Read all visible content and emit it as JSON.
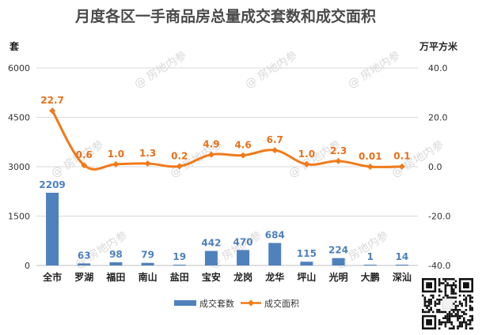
{
  "chart_data": {
    "type": "bar+line",
    "title": "月度各区一手商品房总量成交套数和成交面积",
    "y_left_unit": "套",
    "y_right_unit": "万平方米",
    "y_left_ticks": [
      "6000",
      "4500",
      "3000",
      "1500",
      "0"
    ],
    "y_right_ticks": [
      "40.0",
      "20.0",
      "0.0",
      "-20.0",
      "-40.0"
    ],
    "y_left_range": [
      0,
      6000
    ],
    "y_right_range": [
      -40,
      40
    ],
    "categories": [
      "全市",
      "罗湖",
      "福田",
      "南山",
      "盐田",
      "宝安",
      "龙岗",
      "龙华",
      "坪山",
      "光明",
      "大鹏",
      "深汕"
    ],
    "series": [
      {
        "name": "成交套数",
        "type": "bar",
        "axis": "left",
        "color": "#4f81bd",
        "values": [
          2209,
          63,
          98,
          79,
          19,
          442,
          470,
          684,
          115,
          224,
          1,
          14
        ],
        "labels": [
          "2209",
          "63",
          "98",
          "79",
          "19",
          "442",
          "470",
          "684",
          "115",
          "224",
          "1",
          "14"
        ]
      },
      {
        "name": "成交面积",
        "type": "line",
        "axis": "right",
        "color": "#f07a1a",
        "values": [
          22.7,
          0.6,
          1.0,
          1.3,
          0.2,
          4.9,
          4.6,
          6.7,
          1.0,
          2.3,
          0.01,
          0.1
        ],
        "labels": [
          "22.7",
          "0.6",
          "1.0",
          "1.3",
          "0.2",
          "4.9",
          "4.6",
          "6.7",
          "1.0",
          "2.3",
          "0.01",
          "0.1"
        ]
      }
    ],
    "legend_position": "bottom",
    "grid": true
  },
  "watermark": "房地内参",
  "colors": {
    "bar": "#4f81bd",
    "line": "#f07a1a",
    "bar_label": "#4f81bd",
    "line_label": "#e8701a"
  }
}
